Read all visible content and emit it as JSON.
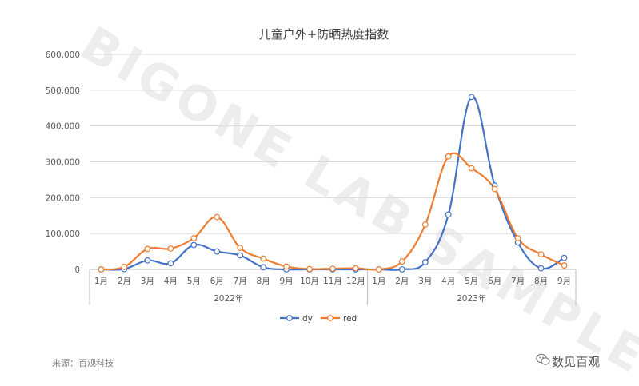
{
  "chart_data": {
    "type": "line",
    "title": "儿童户外+防晒热度指数",
    "categories": [
      "1月",
      "2月",
      "3月",
      "4月",
      "5月",
      "6月",
      "7月",
      "8月",
      "9月",
      "10月",
      "11月",
      "12月",
      "1月",
      "2月",
      "3月",
      "4月",
      "5月",
      "6月",
      "7月",
      "8月",
      "9月"
    ],
    "groups": [
      {
        "label": "2022年",
        "start": 0,
        "end": 11
      },
      {
        "label": "2023年",
        "start": 12,
        "end": 20
      }
    ],
    "ylim": [
      0,
      600000
    ],
    "yticks": [
      "0",
      "100,000",
      "200,000",
      "300,000",
      "400,000",
      "500,000",
      "600,000"
    ],
    "ytick_values": [
      0,
      100000,
      200000,
      300000,
      400000,
      500000,
      600000
    ],
    "grid": true,
    "legend": "bottom",
    "series": [
      {
        "name": "dy",
        "color": "#4472c4",
        "values": [
          0,
          1000,
          25000,
          17000,
          68000,
          50000,
          39000,
          6000,
          0,
          0,
          0,
          0,
          0,
          0,
          20000,
          153000,
          481000,
          234000,
          75000,
          3000,
          32000
        ]
      },
      {
        "name": "red",
        "color": "#ed7d31",
        "values": [
          0,
          7000,
          57000,
          58000,
          87000,
          146000,
          60000,
          30000,
          8000,
          1000,
          2000,
          3000,
          0,
          22000,
          125000,
          315000,
          282000,
          224000,
          87000,
          42000,
          11000
        ]
      }
    ]
  },
  "watermark": "BIGONE LAB SAMPLE",
  "source": "来源：百观科技",
  "brand": "数见百观"
}
